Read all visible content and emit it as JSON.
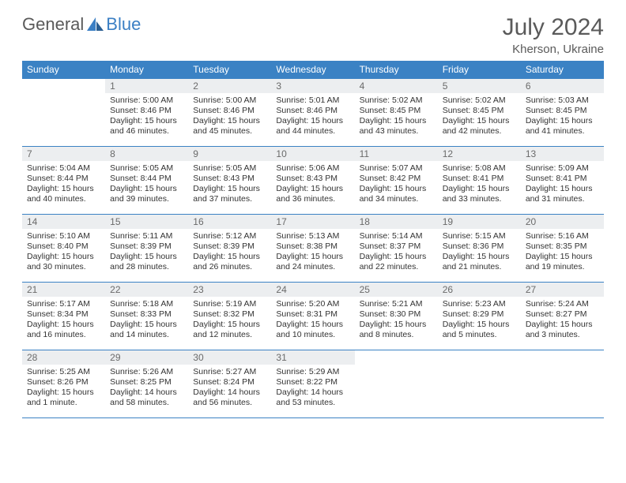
{
  "logo": {
    "word1": "General",
    "word2": "Blue",
    "text_color": "#5a5a5a",
    "accent_color": "#3b7fc4"
  },
  "title": "July 2024",
  "location": "Kherson, Ukraine",
  "colors": {
    "header_bg": "#3b82c4",
    "header_text": "#ffffff",
    "daynum_bg": "#eceef0",
    "daynum_text": "#6a6a6a",
    "body_text": "#333333",
    "rule": "#3b82c4"
  },
  "fonts": {
    "title_pt": 30,
    "location_pt": 15,
    "weekday_pt": 12,
    "daynum_pt": 12,
    "body_pt": 10.5
  },
  "weekdays": [
    "Sunday",
    "Monday",
    "Tuesday",
    "Wednesday",
    "Thursday",
    "Friday",
    "Saturday"
  ],
  "weeks": [
    [
      null,
      {
        "n": "1",
        "sr": "Sunrise: 5:00 AM",
        "ss": "Sunset: 8:46 PM",
        "d1": "Daylight: 15 hours",
        "d2": "and 46 minutes."
      },
      {
        "n": "2",
        "sr": "Sunrise: 5:00 AM",
        "ss": "Sunset: 8:46 PM",
        "d1": "Daylight: 15 hours",
        "d2": "and 45 minutes."
      },
      {
        "n": "3",
        "sr": "Sunrise: 5:01 AM",
        "ss": "Sunset: 8:46 PM",
        "d1": "Daylight: 15 hours",
        "d2": "and 44 minutes."
      },
      {
        "n": "4",
        "sr": "Sunrise: 5:02 AM",
        "ss": "Sunset: 8:45 PM",
        "d1": "Daylight: 15 hours",
        "d2": "and 43 minutes."
      },
      {
        "n": "5",
        "sr": "Sunrise: 5:02 AM",
        "ss": "Sunset: 8:45 PM",
        "d1": "Daylight: 15 hours",
        "d2": "and 42 minutes."
      },
      {
        "n": "6",
        "sr": "Sunrise: 5:03 AM",
        "ss": "Sunset: 8:45 PM",
        "d1": "Daylight: 15 hours",
        "d2": "and 41 minutes."
      }
    ],
    [
      {
        "n": "7",
        "sr": "Sunrise: 5:04 AM",
        "ss": "Sunset: 8:44 PM",
        "d1": "Daylight: 15 hours",
        "d2": "and 40 minutes."
      },
      {
        "n": "8",
        "sr": "Sunrise: 5:05 AM",
        "ss": "Sunset: 8:44 PM",
        "d1": "Daylight: 15 hours",
        "d2": "and 39 minutes."
      },
      {
        "n": "9",
        "sr": "Sunrise: 5:05 AM",
        "ss": "Sunset: 8:43 PM",
        "d1": "Daylight: 15 hours",
        "d2": "and 37 minutes."
      },
      {
        "n": "10",
        "sr": "Sunrise: 5:06 AM",
        "ss": "Sunset: 8:43 PM",
        "d1": "Daylight: 15 hours",
        "d2": "and 36 minutes."
      },
      {
        "n": "11",
        "sr": "Sunrise: 5:07 AM",
        "ss": "Sunset: 8:42 PM",
        "d1": "Daylight: 15 hours",
        "d2": "and 34 minutes."
      },
      {
        "n": "12",
        "sr": "Sunrise: 5:08 AM",
        "ss": "Sunset: 8:41 PM",
        "d1": "Daylight: 15 hours",
        "d2": "and 33 minutes."
      },
      {
        "n": "13",
        "sr": "Sunrise: 5:09 AM",
        "ss": "Sunset: 8:41 PM",
        "d1": "Daylight: 15 hours",
        "d2": "and 31 minutes."
      }
    ],
    [
      {
        "n": "14",
        "sr": "Sunrise: 5:10 AM",
        "ss": "Sunset: 8:40 PM",
        "d1": "Daylight: 15 hours",
        "d2": "and 30 minutes."
      },
      {
        "n": "15",
        "sr": "Sunrise: 5:11 AM",
        "ss": "Sunset: 8:39 PM",
        "d1": "Daylight: 15 hours",
        "d2": "and 28 minutes."
      },
      {
        "n": "16",
        "sr": "Sunrise: 5:12 AM",
        "ss": "Sunset: 8:39 PM",
        "d1": "Daylight: 15 hours",
        "d2": "and 26 minutes."
      },
      {
        "n": "17",
        "sr": "Sunrise: 5:13 AM",
        "ss": "Sunset: 8:38 PM",
        "d1": "Daylight: 15 hours",
        "d2": "and 24 minutes."
      },
      {
        "n": "18",
        "sr": "Sunrise: 5:14 AM",
        "ss": "Sunset: 8:37 PM",
        "d1": "Daylight: 15 hours",
        "d2": "and 22 minutes."
      },
      {
        "n": "19",
        "sr": "Sunrise: 5:15 AM",
        "ss": "Sunset: 8:36 PM",
        "d1": "Daylight: 15 hours",
        "d2": "and 21 minutes."
      },
      {
        "n": "20",
        "sr": "Sunrise: 5:16 AM",
        "ss": "Sunset: 8:35 PM",
        "d1": "Daylight: 15 hours",
        "d2": "and 19 minutes."
      }
    ],
    [
      {
        "n": "21",
        "sr": "Sunrise: 5:17 AM",
        "ss": "Sunset: 8:34 PM",
        "d1": "Daylight: 15 hours",
        "d2": "and 16 minutes."
      },
      {
        "n": "22",
        "sr": "Sunrise: 5:18 AM",
        "ss": "Sunset: 8:33 PM",
        "d1": "Daylight: 15 hours",
        "d2": "and 14 minutes."
      },
      {
        "n": "23",
        "sr": "Sunrise: 5:19 AM",
        "ss": "Sunset: 8:32 PM",
        "d1": "Daylight: 15 hours",
        "d2": "and 12 minutes."
      },
      {
        "n": "24",
        "sr": "Sunrise: 5:20 AM",
        "ss": "Sunset: 8:31 PM",
        "d1": "Daylight: 15 hours",
        "d2": "and 10 minutes."
      },
      {
        "n": "25",
        "sr": "Sunrise: 5:21 AM",
        "ss": "Sunset: 8:30 PM",
        "d1": "Daylight: 15 hours",
        "d2": "and 8 minutes."
      },
      {
        "n": "26",
        "sr": "Sunrise: 5:23 AM",
        "ss": "Sunset: 8:29 PM",
        "d1": "Daylight: 15 hours",
        "d2": "and 5 minutes."
      },
      {
        "n": "27",
        "sr": "Sunrise: 5:24 AM",
        "ss": "Sunset: 8:27 PM",
        "d1": "Daylight: 15 hours",
        "d2": "and 3 minutes."
      }
    ],
    [
      {
        "n": "28",
        "sr": "Sunrise: 5:25 AM",
        "ss": "Sunset: 8:26 PM",
        "d1": "Daylight: 15 hours",
        "d2": "and 1 minute."
      },
      {
        "n": "29",
        "sr": "Sunrise: 5:26 AM",
        "ss": "Sunset: 8:25 PM",
        "d1": "Daylight: 14 hours",
        "d2": "and 58 minutes."
      },
      {
        "n": "30",
        "sr": "Sunrise: 5:27 AM",
        "ss": "Sunset: 8:24 PM",
        "d1": "Daylight: 14 hours",
        "d2": "and 56 minutes."
      },
      {
        "n": "31",
        "sr": "Sunrise: 5:29 AM",
        "ss": "Sunset: 8:22 PM",
        "d1": "Daylight: 14 hours",
        "d2": "and 53 minutes."
      },
      null,
      null,
      null
    ]
  ]
}
